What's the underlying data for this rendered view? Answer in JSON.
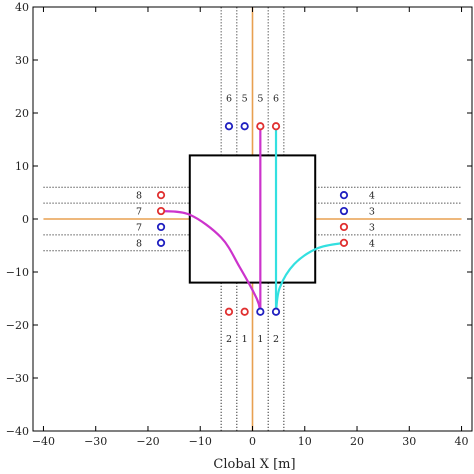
{
  "chart_data": {
    "type": "scatter",
    "title": "",
    "xlabel": "Clobal X [m]",
    "ylabel": "",
    "xlim": [
      -42,
      42
    ],
    "ylim": [
      -40,
      40
    ],
    "xticks": [
      -40,
      -30,
      -20,
      -10,
      0,
      10,
      20,
      30,
      40
    ],
    "yticks": [
      -40,
      -30,
      -20,
      -10,
      0,
      10,
      20,
      30,
      40
    ],
    "xtick_labels": [
      "−40",
      "−30",
      "−20",
      "−10",
      "0",
      "10",
      "20",
      "30",
      "40"
    ],
    "ytick_labels": [
      "−40",
      "−30",
      "−20",
      "−10",
      "0",
      "10",
      "20",
      "30",
      "40"
    ],
    "grid": false,
    "intersection_box": {
      "x": [
        -12,
        12
      ],
      "y": [
        -12,
        12
      ]
    },
    "centerlines": [
      {
        "orientation": "vertical",
        "at": 0,
        "from": -40,
        "to": -12
      },
      {
        "orientation": "vertical",
        "at": 0,
        "from": 12,
        "to": 40
      },
      {
        "orientation": "horizontal",
        "at": 0,
        "from": -40,
        "to": -12
      },
      {
        "orientation": "horizontal",
        "at": 0,
        "from": 12,
        "to": 40
      }
    ],
    "lane_boundaries": [
      {
        "orientation": "vertical",
        "at": -6,
        "from": 12,
        "to": 40
      },
      {
        "orientation": "vertical",
        "at": -3,
        "from": 12,
        "to": 40
      },
      {
        "orientation": "vertical",
        "at": 3,
        "from": 12,
        "to": 40
      },
      {
        "orientation": "vertical",
        "at": 6,
        "from": 12,
        "to": 40
      },
      {
        "orientation": "vertical",
        "at": -6,
        "from": -40,
        "to": -12
      },
      {
        "orientation": "vertical",
        "at": -3,
        "from": -40,
        "to": -12
      },
      {
        "orientation": "vertical",
        "at": 3,
        "from": -40,
        "to": -12
      },
      {
        "orientation": "vertical",
        "at": 6,
        "from": -40,
        "to": -12
      },
      {
        "orientation": "horizontal",
        "at": 6,
        "from": -40,
        "to": -12
      },
      {
        "orientation": "horizontal",
        "at": 3,
        "from": -40,
        "to": -12
      },
      {
        "orientation": "horizontal",
        "at": -3,
        "from": -40,
        "to": -12
      },
      {
        "orientation": "horizontal",
        "at": -6,
        "from": -40,
        "to": -12
      },
      {
        "orientation": "horizontal",
        "at": 6,
        "from": 12,
        "to": 40
      },
      {
        "orientation": "horizontal",
        "at": 3,
        "from": 12,
        "to": 40
      },
      {
        "orientation": "horizontal",
        "at": -3,
        "from": 12,
        "to": 40
      },
      {
        "orientation": "horizontal",
        "at": -6,
        "from": 12,
        "to": 40
      }
    ],
    "lane_points": [
      {
        "x": -4.5,
        "y": 17.5,
        "color": "blue",
        "label": "6"
      },
      {
        "x": -1.5,
        "y": 17.5,
        "color": "blue",
        "label": "5"
      },
      {
        "x": 1.5,
        "y": 17.5,
        "color": "red",
        "label": "5"
      },
      {
        "x": 4.5,
        "y": 17.5,
        "color": "red",
        "label": "6"
      },
      {
        "x": -4.5,
        "y": -17.5,
        "color": "red",
        "label": "2"
      },
      {
        "x": -1.5,
        "y": -17.5,
        "color": "red",
        "label": "1"
      },
      {
        "x": 1.5,
        "y": -17.5,
        "color": "blue",
        "label": "1"
      },
      {
        "x": 4.5,
        "y": -17.5,
        "color": "blue",
        "label": "2"
      },
      {
        "x": -17.5,
        "y": 4.5,
        "color": "red",
        "label": "8"
      },
      {
        "x": -17.5,
        "y": 1.5,
        "color": "red",
        "label": "7"
      },
      {
        "x": -17.5,
        "y": -1.5,
        "color": "blue",
        "label": "7"
      },
      {
        "x": -17.5,
        "y": -4.5,
        "color": "blue",
        "label": "8"
      },
      {
        "x": 17.5,
        "y": 4.5,
        "color": "blue",
        "label": "4"
      },
      {
        "x": 17.5,
        "y": 1.5,
        "color": "blue",
        "label": "3"
      },
      {
        "x": 17.5,
        "y": -1.5,
        "color": "red",
        "label": "3"
      },
      {
        "x": 17.5,
        "y": -4.5,
        "color": "red",
        "label": "4"
      }
    ],
    "paths": [
      {
        "color": "#cc33cc",
        "x": [
          -17.5,
          -12,
          -6,
          -2.5,
          0.8,
          1.5
        ],
        "y": [
          1.5,
          0.8,
          -3.5,
          -9,
          -15,
          -17.5
        ]
      },
      {
        "color": "#cc33cc",
        "x": [
          1.5,
          1.5,
          1.5
        ],
        "y": [
          -17.5,
          0,
          17.5
        ]
      },
      {
        "color": "#33e0e0",
        "x": [
          17.5,
          12.5,
          8,
          5.2,
          4.5
        ],
        "y": [
          -4.5,
          -5.5,
          -8.5,
          -13,
          -17.5
        ]
      },
      {
        "color": "#33e0e0",
        "x": [
          4.5,
          4.5,
          4.5
        ],
        "y": [
          -17.5,
          0,
          17.5
        ]
      }
    ]
  },
  "colors": {
    "centerline": "#e8a050",
    "boundary": "#333333",
    "box": "#000000",
    "red_marker": "#e03030",
    "blue_marker": "#2020c0"
  }
}
